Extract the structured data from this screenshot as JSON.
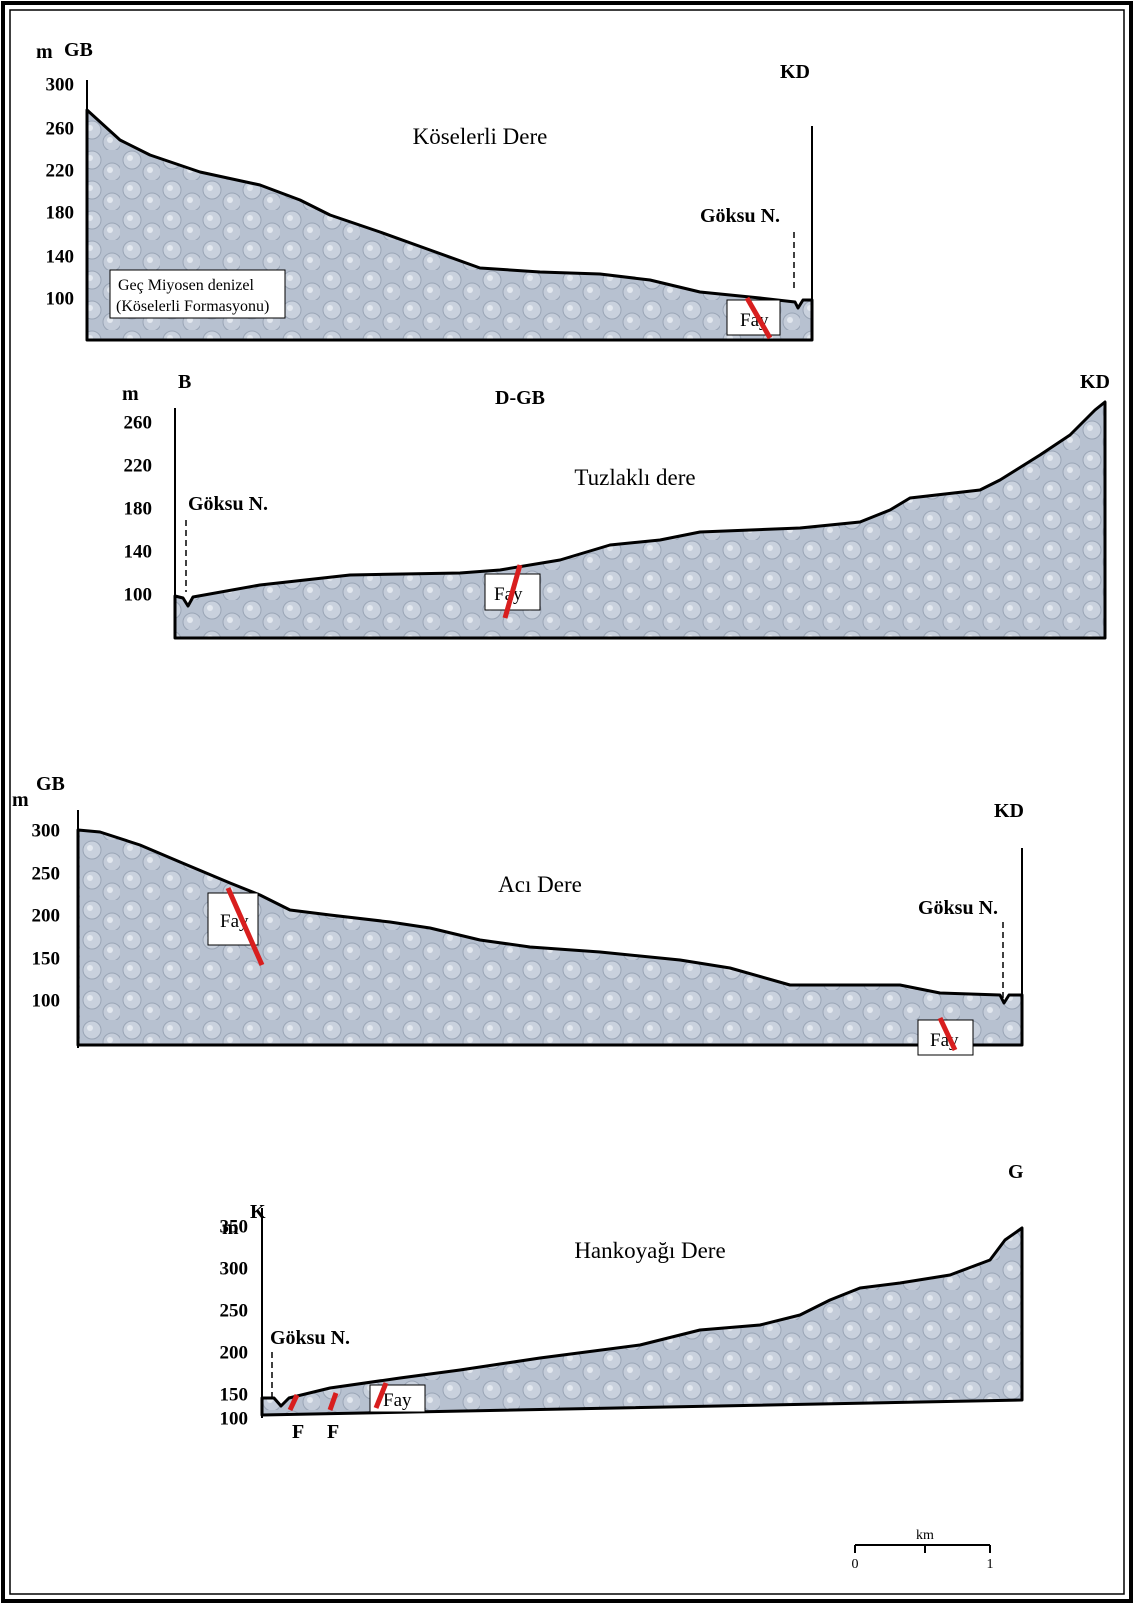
{
  "profiles": [
    {
      "title": "Köselerli Dere",
      "unit": "m",
      "left_end": "GB",
      "right_end": "KD",
      "ticks": [
        "300",
        "260",
        "220",
        "180",
        "140",
        "100"
      ],
      "river": "Göksu N.",
      "formation": [
        "Geç Miyosen denizel",
        "(Köselerli Formasyonu)"
      ],
      "faults": [
        "Fay"
      ]
    },
    {
      "title": "Tuzlaklı dere",
      "unit": "m",
      "left_end": "B",
      "direction": "D-GB",
      "right_end": "KD",
      "ticks": [
        "260",
        "220",
        "180",
        "140",
        "100"
      ],
      "river": "Göksu N.",
      "faults": [
        "Fay"
      ]
    },
    {
      "title": "Acı Dere",
      "unit": "m",
      "left_end": "GB",
      "right_end": "KD",
      "ticks": [
        "300",
        "250",
        "200",
        "150",
        "100"
      ],
      "river": "Göksu N.",
      "faults": [
        "Fay",
        "Fay"
      ]
    },
    {
      "title": "Hankoyağı Dere",
      "unit": "m",
      "left_end": "K",
      "right_end": "G",
      "ticks": [
        "350",
        "300",
        "250",
        "200",
        "150",
        "100"
      ],
      "river": "Göksu N.",
      "faults": [
        "F",
        "F",
        "Fay"
      ]
    }
  ],
  "scale": {
    "unit": "km",
    "start": "0",
    "end": "1"
  }
}
